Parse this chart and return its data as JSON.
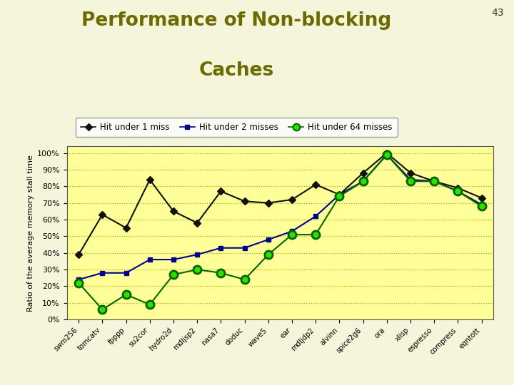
{
  "title_line1": "Performance of Non-blocking",
  "title_line2": "Caches",
  "title_color": "#6b6b00",
  "slide_number": "43",
  "ylabel": "Ratio of the average memory stall time",
  "background_color": "#f5f5dc",
  "plot_background": "#ffff99",
  "categories": [
    "swm256",
    "tomcatv",
    "fpppp",
    "su2cor",
    "hydro2d",
    "mdljsp2",
    "nasa7",
    "doduc",
    "wave5",
    "ear",
    "mdljdp2",
    "alvinn",
    "spice2g6",
    "ora",
    "xlisp",
    "espresso",
    "compress",
    "eqntott"
  ],
  "hit1": [
    39,
    63,
    55,
    84,
    65,
    58,
    77,
    71,
    70,
    72,
    81,
    75,
    88,
    100,
    88,
    83,
    79,
    73
  ],
  "hit2": [
    24,
    28,
    28,
    36,
    36,
    39,
    43,
    43,
    48,
    53,
    62,
    75,
    83,
    99,
    84,
    83,
    77,
    69
  ],
  "hit64": [
    22,
    6,
    15,
    9,
    27,
    30,
    28,
    24,
    39,
    51,
    51,
    74,
    83,
    99,
    83,
    83,
    77,
    68
  ],
  "hit1_color": "#111111",
  "hit2_color": "#00008b",
  "hit64_face": "#33dd00",
  "hit64_edge": "#006600",
  "grid_color": "#aaaa00",
  "ytick_labels": [
    "0%",
    "10%",
    "20%",
    "30%",
    "40%",
    "50%",
    "60%",
    "70%",
    "80%",
    "90%",
    "100%"
  ],
  "ytick_values": [
    0,
    10,
    20,
    30,
    40,
    50,
    60,
    70,
    80,
    90,
    100
  ],
  "legend_labels": [
    "Hit under 1 miss",
    "Hit under 2 misses",
    "Hit under 64 misses"
  ]
}
